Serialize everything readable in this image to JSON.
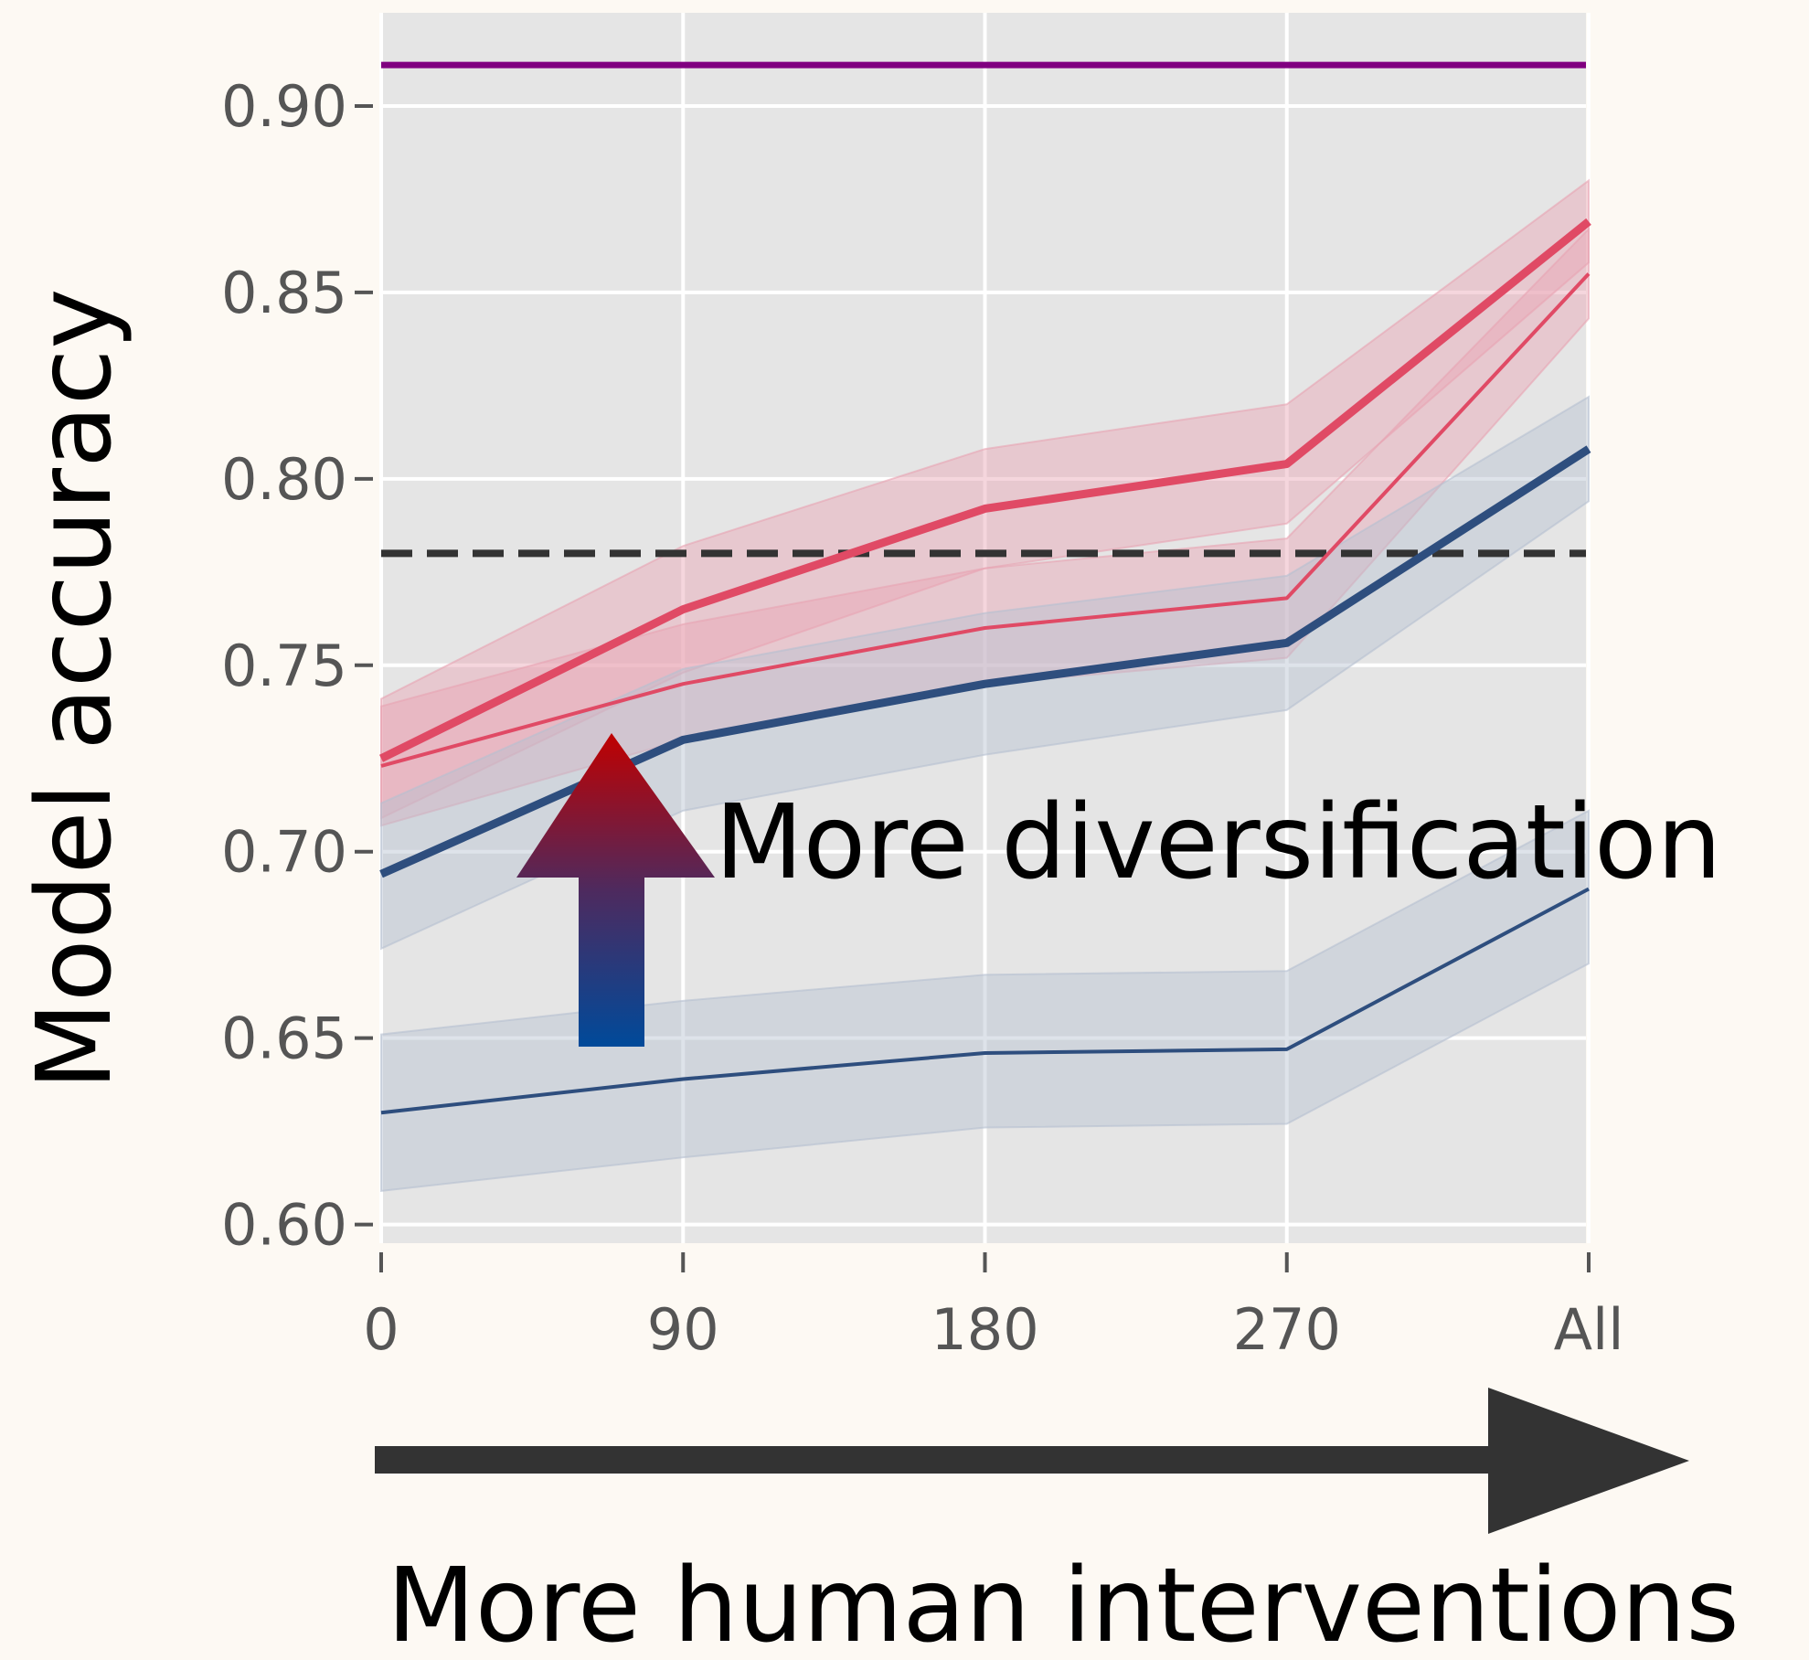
{
  "chart_data": {
    "type": "line",
    "title": "",
    "xlabel": "More human interventions",
    "ylabel": "Model accuracy",
    "categories": [
      "0",
      "90",
      "180",
      "270",
      "All"
    ],
    "ylim": [
      0.595,
      0.925
    ],
    "yticks": [
      0.6,
      0.65,
      0.7,
      0.75,
      0.8,
      0.85,
      0.9
    ],
    "ytick_labels": [
      "0.60",
      "0.65",
      "0.70",
      "0.75",
      "0.80",
      "0.85",
      "0.90"
    ],
    "grid": true,
    "reference_lines": [
      {
        "value": 0.911,
        "style": "solid",
        "color": "#800080"
      },
      {
        "value": 0.78,
        "style": "dashed",
        "color": "#333333"
      }
    ],
    "series": [
      {
        "values": [
          0.725,
          0.765,
          0.792,
          0.804,
          0.869
        ],
        "lower": [
          0.709,
          0.748,
          0.776,
          0.788,
          0.858
        ],
        "upper": [
          0.741,
          0.782,
          0.808,
          0.82,
          0.88
        ],
        "color": "#e04a65",
        "width": 9,
        "band": "#e8a3b3"
      },
      {
        "values": [
          0.723,
          0.745,
          0.76,
          0.768,
          0.855
        ],
        "lower": [
          0.707,
          0.73,
          0.745,
          0.752,
          0.843
        ],
        "upper": [
          0.739,
          0.761,
          0.776,
          0.784,
          0.867
        ],
        "color": "#e04a65",
        "width": 4,
        "band": "#e8a3b3"
      },
      {
        "values": [
          0.694,
          0.73,
          0.745,
          0.756,
          0.808
        ],
        "lower": [
          0.674,
          0.711,
          0.726,
          0.738,
          0.794
        ],
        "upper": [
          0.713,
          0.749,
          0.764,
          0.774,
          0.822
        ],
        "color": "#2e4e7e",
        "width": 9,
        "band": "#b5c0d0"
      },
      {
        "values": [
          0.63,
          0.639,
          0.646,
          0.647,
          0.69
        ],
        "lower": [
          0.609,
          0.618,
          0.626,
          0.627,
          0.67
        ],
        "upper": [
          0.651,
          0.66,
          0.667,
          0.668,
          0.711
        ],
        "color": "#2e4e7e",
        "width": 4,
        "band": "#b5c0d0"
      }
    ],
    "annotations": [
      {
        "text": "More diversification"
      }
    ]
  }
}
